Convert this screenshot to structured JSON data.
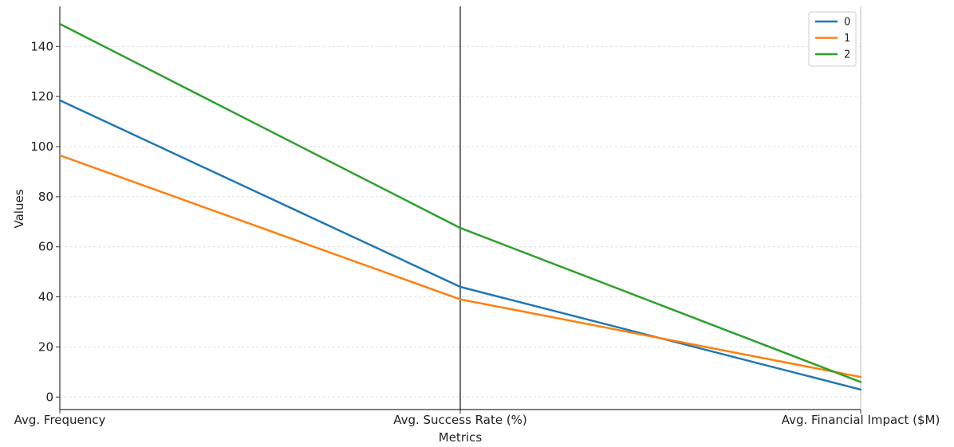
{
  "chart_data": {
    "type": "line",
    "title": "",
    "xlabel": "Metrics",
    "ylabel": "Values",
    "categories": [
      "Avg. Frequency",
      "Avg. Success Rate (%)",
      "Avg. Financial Impact ($M)"
    ],
    "series": [
      {
        "name": "0",
        "color": "#1f77b4",
        "values": [
          118.5,
          44,
          3
        ]
      },
      {
        "name": "1",
        "color": "#ff7f0e",
        "values": [
          96.5,
          39,
          8
        ]
      },
      {
        "name": "2",
        "color": "#2ca02c",
        "values": [
          149,
          67.5,
          6
        ]
      }
    ],
    "ylim": [
      -5,
      156
    ],
    "yticks": [
      0,
      20,
      40,
      60,
      80,
      100,
      120,
      140
    ],
    "ytick_labels": [
      "0",
      "20",
      "40",
      "60",
      "80",
      "100",
      "120",
      "140"
    ],
    "grid": true,
    "legend_position": "top-right",
    "vertical_markers": [
      "Avg. Success Rate (%)"
    ]
  }
}
